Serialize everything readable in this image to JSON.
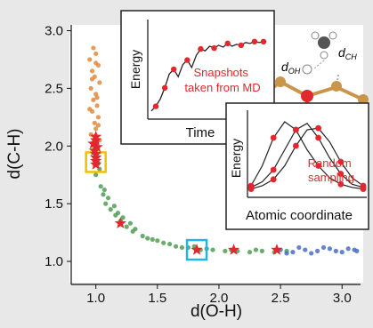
{
  "chart_data": [
    {
      "type": "scatter",
      "xlabel": "d(O-H)",
      "ylabel": "d(C-H)",
      "xlim": [
        0.8,
        3.15
      ],
      "ylim": [
        0.8,
        3.05
      ],
      "xticks": [
        "1.0",
        "1.5",
        "2.0",
        "2.5",
        "3.0"
      ],
      "xtick_values": [
        1.0,
        1.5,
        2.0,
        2.5,
        3.0
      ],
      "yticks": [
        "1.0",
        "1.5",
        "2.0",
        "2.5",
        "3.0"
      ],
      "ytick_values": [
        1.0,
        1.5,
        2.0,
        2.5,
        3.0
      ],
      "grid": false,
      "series": [
        {
          "color": "#e08a3c",
          "points": [
            [
              0.98,
              2.85
            ],
            [
              1.0,
              2.8
            ],
            [
              0.95,
              2.75
            ],
            [
              1.02,
              2.7
            ],
            [
              0.97,
              2.65
            ],
            [
              0.99,
              2.6
            ],
            [
              1.03,
              2.55
            ],
            [
              0.96,
              2.5
            ],
            [
              1.0,
              2.45
            ],
            [
              0.98,
              2.4
            ],
            [
              1.01,
              2.35
            ],
            [
              0.97,
              2.3
            ],
            [
              1.02,
              2.25
            ],
            [
              0.99,
              2.2
            ],
            [
              1.0,
              2.15
            ],
            [
              0.96,
              2.1
            ],
            [
              1.03,
              2.05
            ],
            [
              0.98,
              2.0
            ],
            [
              1.0,
              2.72
            ],
            [
              0.97,
              2.58
            ],
            [
              1.01,
              2.42
            ],
            [
              0.95,
              2.32
            ],
            [
              1.02,
              2.18
            ],
            [
              0.99,
              2.08
            ]
          ]
        },
        {
          "color": "#4f9e52",
          "points": [
            [
              1.0,
              1.95
            ],
            [
              1.02,
              1.85
            ],
            [
              1.0,
              1.75
            ],
            [
              1.04,
              1.65
            ],
            [
              1.06,
              1.58
            ],
            [
              1.08,
              1.5
            ],
            [
              1.12,
              1.45
            ],
            [
              1.16,
              1.4
            ],
            [
              1.2,
              1.35
            ],
            [
              1.25,
              1.3
            ],
            [
              1.3,
              1.26
            ],
            [
              1.38,
              1.22
            ],
            [
              1.46,
              1.19
            ],
            [
              1.55,
              1.16
            ],
            [
              1.65,
              1.13
            ],
            [
              1.75,
              1.12
            ],
            [
              1.85,
              1.1
            ],
            [
              1.95,
              1.1
            ],
            [
              2.05,
              1.09
            ],
            [
              2.15,
              1.09
            ],
            [
              2.25,
              1.08
            ],
            [
              2.35,
              1.09
            ],
            [
              2.45,
              1.08
            ],
            [
              2.55,
              1.09
            ],
            [
              1.1,
              1.55
            ],
            [
              1.15,
              1.48
            ],
            [
              1.22,
              1.38
            ],
            [
              1.32,
              1.28
            ],
            [
              1.42,
              1.2
            ],
            [
              1.6,
              1.15
            ],
            [
              1.7,
              1.12
            ],
            [
              1.9,
              1.11
            ],
            [
              2.1,
              1.1
            ],
            [
              2.3,
              1.1
            ],
            [
              1.03,
              1.8
            ],
            [
              1.07,
              1.62
            ],
            [
              1.18,
              1.42
            ],
            [
              1.28,
              1.33
            ],
            [
              1.5,
              1.18
            ],
            [
              1.8,
              1.13
            ]
          ]
        },
        {
          "color": "#4a6fc4",
          "points": [
            [
              2.5,
              1.1
            ],
            [
              2.6,
              1.08
            ],
            [
              2.7,
              1.1
            ],
            [
              2.8,
              1.09
            ],
            [
              2.9,
              1.11
            ],
            [
              3.0,
              1.08
            ],
            [
              3.1,
              1.1
            ],
            [
              2.65,
              1.12
            ],
            [
              2.75,
              1.07
            ],
            [
              2.85,
              1.12
            ],
            [
              2.95,
              1.09
            ],
            [
              3.05,
              1.11
            ],
            [
              2.55,
              1.07
            ],
            [
              3.12,
              1.09
            ]
          ]
        }
      ],
      "stars": {
        "color": "#e0282e",
        "points": [
          [
            1.0,
            2.08
          ],
          [
            1.0,
            2.05
          ],
          [
            0.98,
            2.02
          ],
          [
            1.01,
            1.99
          ],
          [
            0.99,
            1.96
          ],
          [
            1.0,
            1.93
          ],
          [
            1.0,
            1.9
          ],
          [
            1.0,
            1.87
          ],
          [
            1.0,
            1.84
          ],
          [
            1.2,
            1.33
          ],
          [
            1.82,
            1.1
          ],
          [
            2.12,
            1.1
          ],
          [
            2.47,
            1.1
          ]
        ]
      },
      "highlights": [
        {
          "x": 1.0,
          "y": 1.86,
          "color": "#f0c000"
        },
        {
          "x": 1.82,
          "y": 1.1,
          "color": "#1fb6e6"
        }
      ]
    },
    {
      "type": "line",
      "ylabel": "Energy",
      "xlabel": "Time",
      "annotation": "Snapshots taken from MD",
      "color_line": "#222222",
      "color_points": "#e0282e",
      "values": [
        0.05,
        0.1,
        0.18,
        0.3,
        0.45,
        0.5,
        0.42,
        0.55,
        0.6,
        0.52,
        0.65,
        0.72,
        0.7,
        0.75,
        0.73,
        0.76,
        0.74,
        0.78,
        0.75,
        0.77,
        0.76,
        0.79,
        0.78,
        0.8,
        0.79,
        0.8
      ],
      "snapshot_indices": [
        1,
        3,
        5,
        8,
        11,
        14,
        17,
        20,
        23,
        25
      ]
    },
    {
      "type": "line",
      "ylabel": "Energy",
      "xlabel": "Atomic coordinate",
      "annotation": "Random sampling",
      "color_line": "#222222",
      "color_points": "#e0282e",
      "series": [
        {
          "values": [
            0.1,
            0.35,
            0.7,
            0.9,
            0.8,
            0.55,
            0.35,
            0.2,
            0.12,
            0.08,
            0.06
          ]
        },
        {
          "values": [
            0.08,
            0.15,
            0.3,
            0.55,
            0.8,
            0.88,
            0.7,
            0.45,
            0.25,
            0.12,
            0.08
          ]
        },
        {
          "values": [
            0.06,
            0.1,
            0.18,
            0.35,
            0.6,
            0.8,
            0.82,
            0.65,
            0.4,
            0.2,
            0.1
          ]
        }
      ]
    }
  ],
  "molecule": {
    "labels": [
      "d_OH",
      "d_CH"
    ],
    "label_main": "d",
    "label_sub_oh": "OH",
    "label_sub_ch": "CH"
  }
}
